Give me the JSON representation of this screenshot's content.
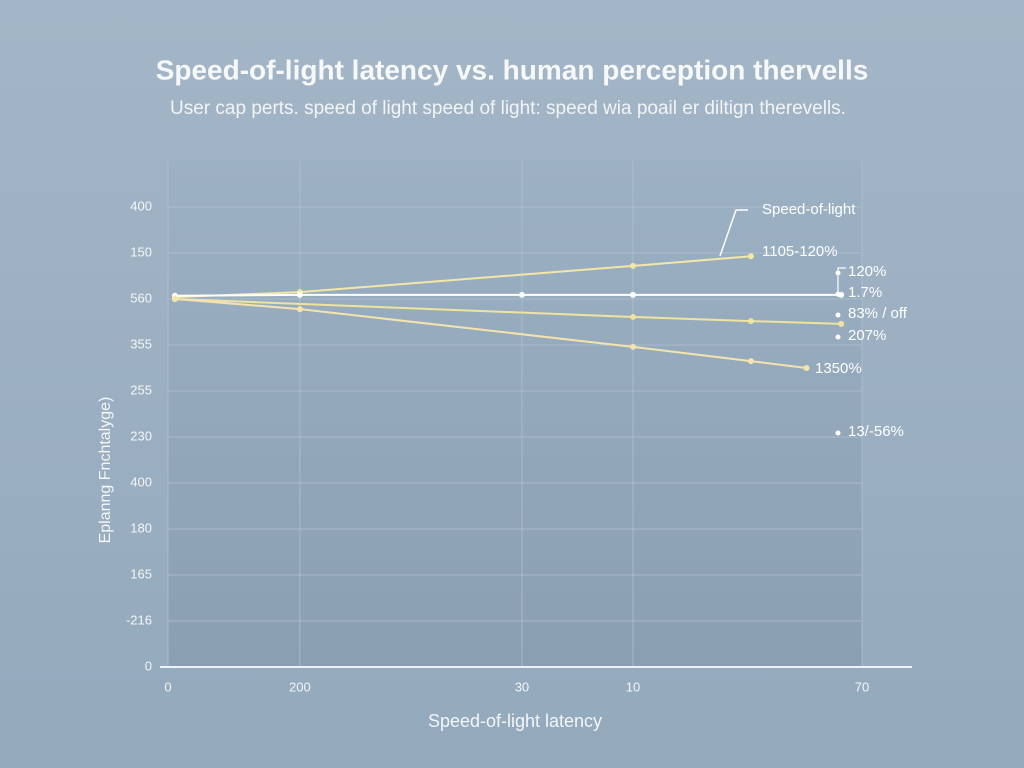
{
  "chart_data": {
    "type": "line",
    "title": "Speed-of-light latency vs. human perception thervells",
    "subtitle": "User cap perts. speed of light speed of light: speed wia poail er diltign therevells.",
    "xlabel": "Speed-of-light latency",
    "ylabel": "Eplanng Fnchtalyge)",
    "xlim": [
      0,
      100
    ],
    "xticks": [
      {
        "value": 0,
        "label": "0"
      },
      {
        "value": 19,
        "label": "200"
      },
      {
        "value": 51,
        "label": "30"
      },
      {
        "value": 67,
        "label": "10"
      },
      {
        "value": 100,
        "label": "70"
      }
    ],
    "ylim": [
      0,
      11
    ],
    "yticks": [
      {
        "value": 0,
        "label": "0"
      },
      {
        "value": 1,
        "label": "-216"
      },
      {
        "value": 2,
        "label": "165"
      },
      {
        "value": 3,
        "label": "180"
      },
      {
        "value": 4,
        "label": "400"
      },
      {
        "value": 5,
        "label": "230"
      },
      {
        "value": 6,
        "label": "255"
      },
      {
        "value": 7,
        "label": "355"
      },
      {
        "value": 8,
        "label": "560"
      },
      {
        "value": 9,
        "label": "150"
      },
      {
        "value": 10,
        "label": "400"
      }
    ],
    "grid": true,
    "series": [
      {
        "name": "Speed-of-light",
        "color": "#f2e7a6",
        "x": [
          1,
          19,
          67,
          84
        ],
        "values": [
          8.04,
          8.15,
          8.72,
          8.93
        ]
      },
      {
        "color": "#ffffff",
        "x": [
          1,
          19,
          51,
          67,
          97
        ],
        "values": [
          8.07,
          8.09,
          8.09,
          8.09,
          8.09
        ]
      },
      {
        "color": "#efe39e",
        "x": [
          1,
          67,
          84,
          97
        ],
        "values": [
          8.0,
          7.61,
          7.52,
          7.46
        ]
      },
      {
        "color": "#f4e4ac",
        "x": [
          1,
          19,
          67,
          84,
          92
        ],
        "values": [
          8.0,
          7.78,
          6.96,
          6.65,
          6.5
        ]
      }
    ],
    "annotations": [
      "1105-120%",
      "120%",
      "1.7%",
      "83% / off",
      "207%",
      "1350%",
      "13/-56%"
    ]
  }
}
